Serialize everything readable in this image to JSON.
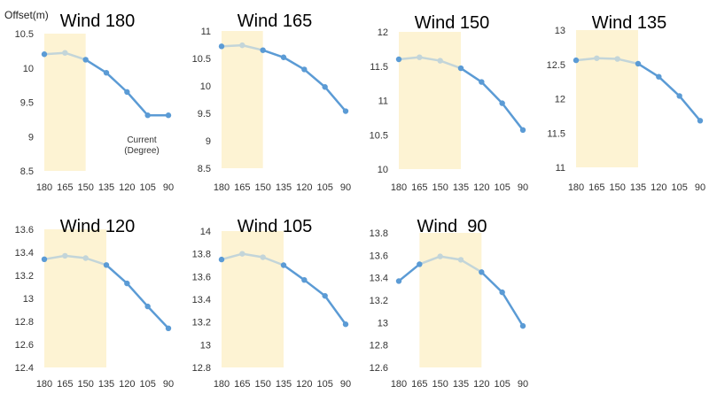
{
  "ylabel": "Offset(m)",
  "annotation": "Current\n(Degree)",
  "colors": {
    "highlight": "#fdf3d3",
    "line": "#5b9bd5",
    "line_faded": "#c3d5d9",
    "axis_text": "#333333",
    "title": "#000000"
  },
  "chart_data": [
    {
      "type": "line",
      "title": "Wind 180",
      "x": [
        "180",
        "165",
        "150",
        "135",
        "120",
        "105",
        "90"
      ],
      "values": [
        10.2,
        10.22,
        10.12,
        9.93,
        9.65,
        9.31,
        9.31
      ],
      "ylim": [
        8.5,
        10.5
      ],
      "yticks": [
        "8.5",
        "9",
        "9.5",
        "10",
        "10.5"
      ],
      "highlight": [
        "180",
        "150"
      ]
    },
    {
      "type": "line",
      "title": "Wind 165",
      "x": [
        "180",
        "165",
        "150",
        "135",
        "120",
        "105",
        "90"
      ],
      "values": [
        10.72,
        10.74,
        10.65,
        10.52,
        10.3,
        9.98,
        9.54
      ],
      "ylim": [
        8.5,
        11
      ],
      "yticks": [
        "8.5",
        "9",
        "9.5",
        "10",
        "10.5",
        "11"
      ],
      "highlight": [
        "180",
        "150"
      ]
    },
    {
      "type": "line",
      "title": "Wind 150",
      "x": [
        "180",
        "165",
        "150",
        "135",
        "120",
        "105",
        "90"
      ],
      "values": [
        11.6,
        11.63,
        11.58,
        11.47,
        11.27,
        10.96,
        10.57
      ],
      "ylim": [
        10,
        12
      ],
      "yticks": [
        "10",
        "10.5",
        "11",
        "11.5",
        "12"
      ],
      "highlight": [
        "180",
        "135"
      ]
    },
    {
      "type": "line",
      "title": "Wind 135",
      "x": [
        "180",
        "165",
        "150",
        "135",
        "120",
        "105",
        "90"
      ],
      "values": [
        12.56,
        12.59,
        12.58,
        12.51,
        12.32,
        12.04,
        11.68
      ],
      "ylim": [
        11,
        13
      ],
      "yticks": [
        "11",
        "11.5",
        "12",
        "12.5",
        "13"
      ],
      "highlight": [
        "180",
        "135"
      ]
    },
    {
      "type": "line",
      "title": "Wind 120",
      "x": [
        "180",
        "165",
        "150",
        "135",
        "120",
        "105",
        "90"
      ],
      "values": [
        13.34,
        13.37,
        13.35,
        13.29,
        13.13,
        12.93,
        12.74
      ],
      "ylim": [
        12.4,
        13.6
      ],
      "yticks": [
        "12.4",
        "12.6",
        "12.8",
        "13",
        "13.2",
        "13.4",
        "13.6"
      ],
      "highlight": [
        "180",
        "135"
      ]
    },
    {
      "type": "line",
      "title": "Wind 105",
      "x": [
        "180",
        "165",
        "150",
        "135",
        "120",
        "105",
        "90"
      ],
      "values": [
        13.75,
        13.8,
        13.77,
        13.7,
        13.57,
        13.43,
        13.18
      ],
      "ylim": [
        12.8,
        14
      ],
      "yticks": [
        "12.8",
        "13",
        "13.2",
        "13.4",
        "13.6",
        "13.8",
        "14"
      ],
      "highlight": [
        "180",
        "135"
      ]
    },
    {
      "type": "line",
      "title": "Wind  90",
      "x": [
        "180",
        "165",
        "150",
        "135",
        "120",
        "105",
        "90"
      ],
      "values": [
        13.37,
        13.52,
        13.59,
        13.56,
        13.45,
        13.27,
        12.97
      ],
      "ylim": [
        12.6,
        13.8
      ],
      "yticks": [
        "12.6",
        "12.8",
        "13",
        "13.2",
        "13.4",
        "13.6",
        "13.8"
      ],
      "highlight": [
        "165",
        "120"
      ]
    }
  ]
}
